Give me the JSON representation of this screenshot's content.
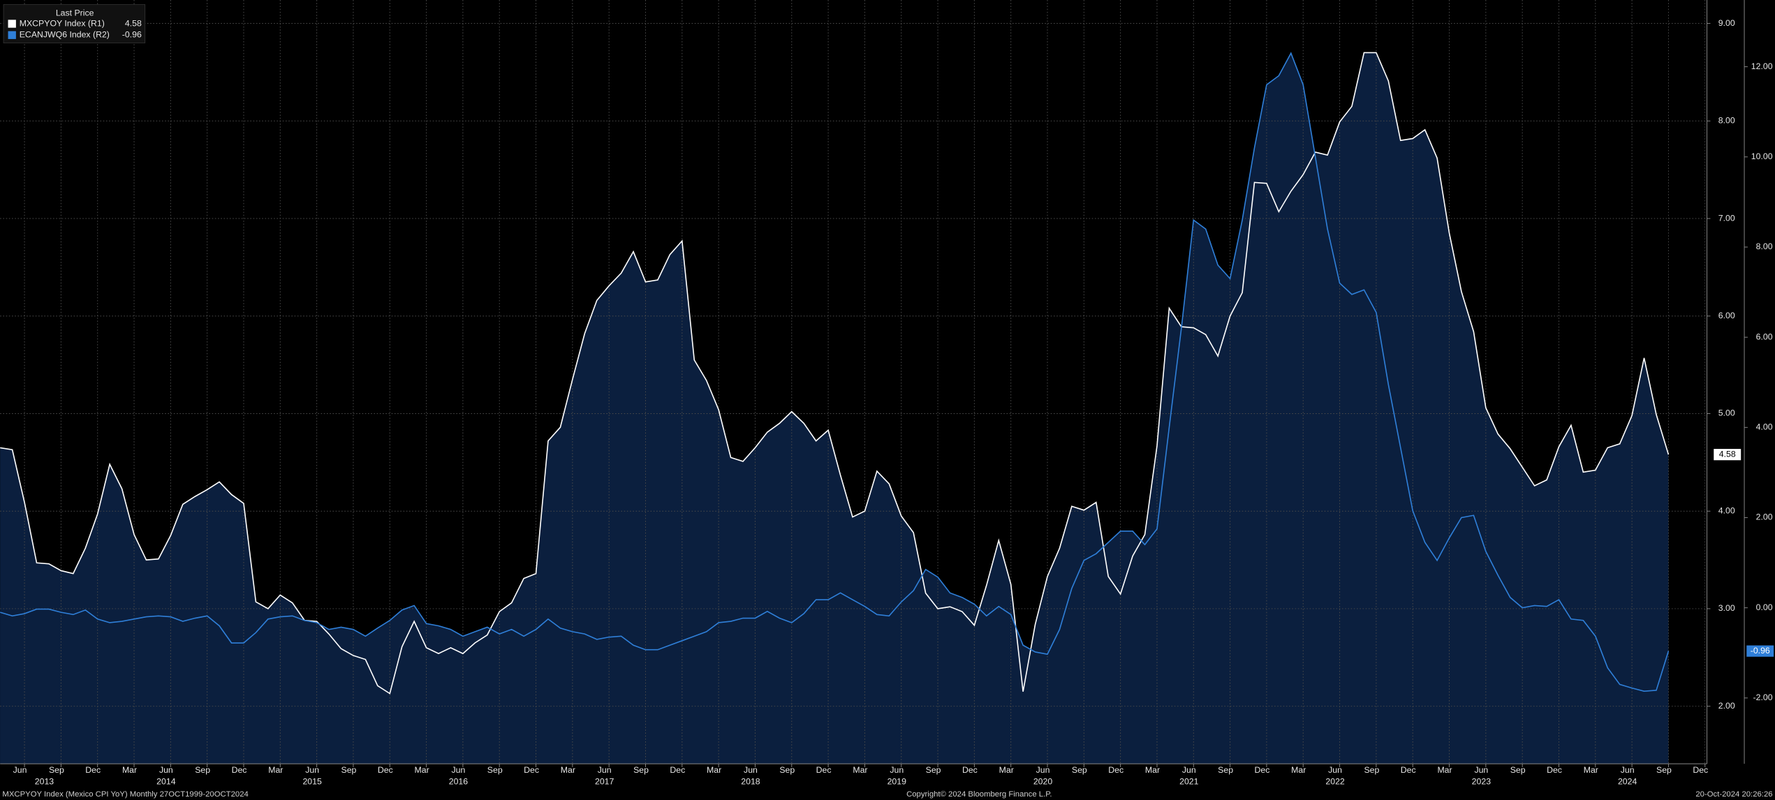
{
  "chart_data": {
    "type": "line",
    "legend_title": "Last Price",
    "footer_left": "MXCPYOY Index (Mexico CPI YoY)  Monthly 27OCT1999-20OCT2024",
    "footer_center": "Copyright© 2024 Bloomberg Finance L.P.",
    "footer_right": "20-Oct-2024 20:26:26",
    "x": [
      "2013-04",
      "2013-05",
      "2013-06",
      "2013-07",
      "2013-08",
      "2013-09",
      "2013-10",
      "2013-11",
      "2013-12",
      "2014-01",
      "2014-02",
      "2014-03",
      "2014-04",
      "2014-05",
      "2014-06",
      "2014-07",
      "2014-08",
      "2014-09",
      "2014-10",
      "2014-11",
      "2014-12",
      "2015-01",
      "2015-02",
      "2015-03",
      "2015-04",
      "2015-05",
      "2015-06",
      "2015-07",
      "2015-08",
      "2015-09",
      "2015-10",
      "2015-11",
      "2015-12",
      "2016-01",
      "2016-02",
      "2016-03",
      "2016-04",
      "2016-05",
      "2016-06",
      "2016-07",
      "2016-08",
      "2016-09",
      "2016-10",
      "2016-11",
      "2016-12",
      "2017-01",
      "2017-02",
      "2017-03",
      "2017-04",
      "2017-05",
      "2017-06",
      "2017-07",
      "2017-08",
      "2017-09",
      "2017-10",
      "2017-11",
      "2017-12",
      "2018-01",
      "2018-02",
      "2018-03",
      "2018-04",
      "2018-05",
      "2018-06",
      "2018-07",
      "2018-08",
      "2018-09",
      "2018-10",
      "2018-11",
      "2018-12",
      "2019-01",
      "2019-02",
      "2019-03",
      "2019-04",
      "2019-05",
      "2019-06",
      "2019-07",
      "2019-08",
      "2019-09",
      "2019-10",
      "2019-11",
      "2019-12",
      "2020-01",
      "2020-02",
      "2020-03",
      "2020-04",
      "2020-05",
      "2020-06",
      "2020-07",
      "2020-08",
      "2020-09",
      "2020-10",
      "2020-11",
      "2020-12",
      "2021-01",
      "2021-02",
      "2021-03",
      "2021-04",
      "2021-05",
      "2021-06",
      "2021-07",
      "2021-08",
      "2021-09",
      "2021-10",
      "2021-11",
      "2021-12",
      "2022-01",
      "2022-02",
      "2022-03",
      "2022-04",
      "2022-05",
      "2022-06",
      "2022-07",
      "2022-08",
      "2022-09",
      "2022-10",
      "2022-11",
      "2022-12",
      "2023-01",
      "2023-02",
      "2023-03",
      "2023-04",
      "2023-05",
      "2023-06",
      "2023-07",
      "2023-08",
      "2023-09",
      "2023-10",
      "2023-11",
      "2023-12",
      "2024-01",
      "2024-02",
      "2024-03",
      "2024-04",
      "2024-05",
      "2024-06",
      "2024-07",
      "2024-08",
      "2024-09"
    ],
    "series": [
      {
        "name": "MXCPYOY Index  (R1)",
        "color": "#ffffff",
        "axis": "y",
        "values": [
          4.65,
          4.63,
          4.09,
          3.47,
          3.46,
          3.39,
          3.36,
          3.62,
          3.97,
          4.48,
          4.23,
          3.76,
          3.5,
          3.51,
          3.75,
          4.07,
          4.15,
          4.22,
          4.3,
          4.17,
          4.08,
          3.07,
          3.0,
          3.14,
          3.06,
          2.88,
          2.87,
          2.74,
          2.59,
          2.52,
          2.48,
          2.21,
          2.13,
          2.61,
          2.87,
          2.6,
          2.54,
          2.6,
          2.54,
          2.65,
          2.73,
          2.97,
          3.06,
          3.31,
          3.36,
          4.72,
          4.86,
          5.35,
          5.82,
          6.16,
          6.31,
          6.44,
          6.66,
          6.35,
          6.37,
          6.63,
          6.77,
          5.55,
          5.34,
          5.04,
          4.55,
          4.51,
          4.65,
          4.81,
          4.9,
          5.02,
          4.9,
          4.72,
          4.83,
          4.37,
          3.94,
          4.0,
          4.41,
          4.28,
          3.95,
          3.78,
          3.16,
          3.0,
          3.02,
          2.97,
          2.83,
          3.24,
          3.7,
          3.25,
          2.15,
          2.84,
          3.33,
          3.62,
          4.05,
          4.01,
          4.09,
          3.33,
          3.15,
          3.54,
          3.76,
          4.67,
          6.08,
          5.89,
          5.88,
          5.81,
          5.59,
          6.0,
          6.24,
          7.37,
          7.36,
          7.07,
          7.28,
          7.45,
          7.68,
          7.65,
          7.99,
          8.15,
          8.7,
          8.7,
          8.41,
          7.8,
          7.82,
          7.91,
          7.62,
          6.85,
          6.25,
          5.84,
          5.06,
          4.79,
          4.64,
          4.45,
          4.26,
          4.32,
          4.66,
          4.88,
          4.4,
          4.42,
          4.65,
          4.69,
          4.98,
          5.57,
          4.99,
          4.58
        ]
      },
      {
        "name": "ECANJWQ6 Index  (R2)",
        "color": "#2f7fd8",
        "axis": "y2",
        "values": [
          -0.1,
          -0.18,
          -0.13,
          -0.03,
          -0.03,
          -0.1,
          -0.15,
          -0.05,
          -0.25,
          -0.33,
          -0.3,
          -0.25,
          -0.2,
          -0.18,
          -0.2,
          -0.3,
          -0.23,
          -0.18,
          -0.4,
          -0.78,
          -0.78,
          -0.55,
          -0.25,
          -0.2,
          -0.18,
          -0.28,
          -0.33,
          -0.48,
          -0.43,
          -0.48,
          -0.63,
          -0.45,
          -0.28,
          -0.05,
          0.05,
          -0.35,
          -0.4,
          -0.48,
          -0.63,
          -0.53,
          -0.43,
          -0.58,
          -0.48,
          -0.63,
          -0.48,
          -0.25,
          -0.45,
          -0.53,
          -0.58,
          -0.7,
          -0.65,
          -0.63,
          -0.83,
          -0.93,
          -0.93,
          -0.83,
          -0.73,
          -0.63,
          -0.53,
          -0.33,
          -0.3,
          -0.23,
          -0.23,
          -0.08,
          -0.23,
          -0.33,
          -0.13,
          0.18,
          0.18,
          0.33,
          0.18,
          0.03,
          -0.15,
          -0.18,
          0.13,
          0.38,
          0.85,
          0.68,
          0.33,
          0.23,
          0.08,
          -0.18,
          0.03,
          -0.15,
          -0.83,
          -0.98,
          -1.03,
          -0.48,
          0.43,
          1.05,
          1.2,
          1.45,
          1.7,
          1.7,
          1.4,
          1.75,
          4.0,
          6.2,
          8.6,
          8.4,
          7.6,
          7.3,
          8.6,
          10.2,
          11.6,
          11.8,
          12.3,
          11.6,
          10.0,
          8.4,
          7.2,
          6.95,
          7.05,
          6.55,
          4.95,
          3.55,
          2.15,
          1.45,
          1.05,
          1.55,
          2.0,
          2.05,
          1.25,
          0.72,
          0.23,
          0.0,
          0.05,
          0.03,
          0.18,
          -0.25,
          -0.28,
          -0.63,
          -1.33,
          -1.7,
          -1.78,
          -1.85,
          -1.83,
          -0.96
        ]
      }
    ],
    "ylim": [
      1.41,
      9.24
    ],
    "yticks": [
      {
        "value": 2,
        "label": "2.00"
      },
      {
        "value": 3,
        "label": "3.00"
      },
      {
        "value": 4,
        "label": "4.00"
      },
      {
        "value": 5,
        "label": "5.00"
      },
      {
        "value": 6,
        "label": "6.00"
      },
      {
        "value": 7,
        "label": "7.00"
      },
      {
        "value": 8,
        "label": "8.00"
      },
      {
        "value": 9,
        "label": "9.00"
      }
    ],
    "y2lim": [
      -3.46,
      13.48
    ],
    "y2ticks": [
      {
        "value": -2,
        "label": "-2.00"
      },
      {
        "value": 0,
        "label": "0.00"
      },
      {
        "value": 2,
        "label": "2.00"
      },
      {
        "value": 4,
        "label": "4.00"
      },
      {
        "value": 6,
        "label": "6.00"
      },
      {
        "value": 8,
        "label": "8.00"
      },
      {
        "value": 10,
        "label": "10.00"
      },
      {
        "value": 12,
        "label": "12.00"
      }
    ],
    "xticks": [
      {
        "value": "2013-06",
        "label": "Jun"
      },
      {
        "value": "2013-09",
        "label": "Sep"
      },
      {
        "value": "2013-12",
        "label": "Dec"
      },
      {
        "value": "2014-03",
        "label": "Mar"
      },
      {
        "value": "2014-06",
        "label": "Jun"
      },
      {
        "value": "2014-09",
        "label": "Sep"
      },
      {
        "value": "2014-12",
        "label": "Dec"
      },
      {
        "value": "2015-03",
        "label": "Mar"
      },
      {
        "value": "2015-06",
        "label": "Jun"
      },
      {
        "value": "2015-09",
        "label": "Sep"
      },
      {
        "value": "2015-12",
        "label": "Dec"
      },
      {
        "value": "2016-03",
        "label": "Mar"
      },
      {
        "value": "2016-06",
        "label": "Jun"
      },
      {
        "value": "2016-09",
        "label": "Sep"
      },
      {
        "value": "2016-12",
        "label": "Dec"
      },
      {
        "value": "2017-03",
        "label": "Mar"
      },
      {
        "value": "2017-06",
        "label": "Jun"
      },
      {
        "value": "2017-09",
        "label": "Sep"
      },
      {
        "value": "2017-12",
        "label": "Dec"
      },
      {
        "value": "2018-03",
        "label": "Mar"
      },
      {
        "value": "2018-06",
        "label": "Jun"
      },
      {
        "value": "2018-09",
        "label": "Sep"
      },
      {
        "value": "2018-12",
        "label": "Dec"
      },
      {
        "value": "2019-03",
        "label": "Mar"
      },
      {
        "value": "2019-06",
        "label": "Jun"
      },
      {
        "value": "2019-09",
        "label": "Sep"
      },
      {
        "value": "2019-12",
        "label": "Dec"
      },
      {
        "value": "2020-03",
        "label": "Mar"
      },
      {
        "value": "2020-06",
        "label": "Jun"
      },
      {
        "value": "2020-09",
        "label": "Sep"
      },
      {
        "value": "2020-12",
        "label": "Dec"
      },
      {
        "value": "2021-03",
        "label": "Mar"
      },
      {
        "value": "2021-06",
        "label": "Jun"
      },
      {
        "value": "2021-09",
        "label": "Sep"
      },
      {
        "value": "2021-12",
        "label": "Dec"
      },
      {
        "value": "2022-03",
        "label": "Mar"
      },
      {
        "value": "2022-06",
        "label": "Jun"
      },
      {
        "value": "2022-09",
        "label": "Sep"
      },
      {
        "value": "2022-12",
        "label": "Dec"
      },
      {
        "value": "2023-03",
        "label": "Mar"
      },
      {
        "value": "2023-06",
        "label": "Jun"
      },
      {
        "value": "2023-09",
        "label": "Sep"
      },
      {
        "value": "2023-12",
        "label": "Dec"
      },
      {
        "value": "2024-03",
        "label": "Mar"
      },
      {
        "value": "2024-06",
        "label": "Jun"
      },
      {
        "value": "2024-09",
        "label": "Sep"
      },
      {
        "value": "2024-12",
        "label": "Dec"
      }
    ],
    "x_year_labels": [
      {
        "value": "2013-08",
        "label": "2013"
      },
      {
        "value": "2014-06",
        "label": "2014"
      },
      {
        "value": "2015-06",
        "label": "2015"
      },
      {
        "value": "2016-06",
        "label": "2016"
      },
      {
        "value": "2017-06",
        "label": "2017"
      },
      {
        "value": "2018-06",
        "label": "2018"
      },
      {
        "value": "2019-06",
        "label": "2019"
      },
      {
        "value": "2020-06",
        "label": "2020"
      },
      {
        "value": "2021-06",
        "label": "2021"
      },
      {
        "value": "2022-06",
        "label": "2022"
      },
      {
        "value": "2023-06",
        "label": "2023"
      },
      {
        "value": "2024-06",
        "label": "2024"
      }
    ],
    "grid": true,
    "area_color": "#0b1f3e"
  }
}
